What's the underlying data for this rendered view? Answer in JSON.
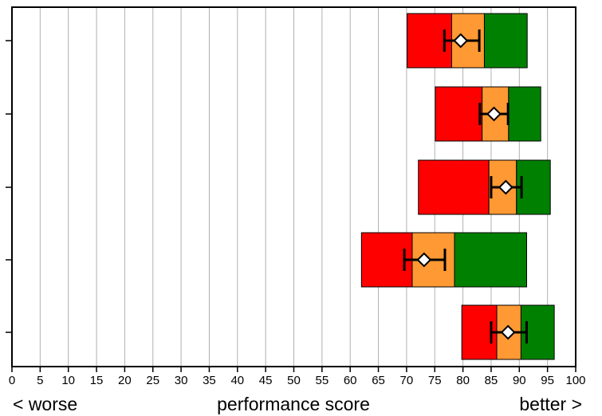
{
  "chart_data": {
    "type": "bar",
    "orientation": "horizontal",
    "subtype": "bullet-range",
    "xlim": [
      0,
      100
    ],
    "x_ticks": [
      0,
      5,
      10,
      15,
      20,
      25,
      30,
      35,
      40,
      45,
      50,
      55,
      60,
      65,
      70,
      75,
      80,
      85,
      90,
      95,
      100
    ],
    "grid": "vertical",
    "xlabel": "performance score",
    "left_label": "< worse",
    "right_label": "better >",
    "colors": {
      "low": "#ff0000",
      "mid": "#ff9933",
      "high": "#008000",
      "marker_fill": "#ffffff",
      "marker_stroke": "#000000",
      "grid": "#b0b0b0"
    },
    "rows": [
      {
        "min": 70.1,
        "q1": 78.0,
        "q3": 83.8,
        "max": 91.4,
        "mean": 79.6,
        "err_low": 76.7,
        "err_high": 82.9
      },
      {
        "min": 75.1,
        "q1": 83.4,
        "q3": 88.1,
        "max": 93.8,
        "mean": 85.5,
        "err_low": 83.0,
        "err_high": 88.0
      },
      {
        "min": 72.1,
        "q1": 84.6,
        "q3": 89.5,
        "max": 95.5,
        "mean": 87.6,
        "err_low": 85.0,
        "err_high": 90.4
      },
      {
        "min": 62.0,
        "q1": 71.0,
        "q3": 78.5,
        "max": 91.3,
        "mean": 73.1,
        "err_low": 69.6,
        "err_high": 76.8
      },
      {
        "min": 79.8,
        "q1": 86.0,
        "q3": 90.3,
        "max": 96.2,
        "mean": 88.0,
        "err_low": 85.0,
        "err_high": 91.3
      }
    ]
  }
}
